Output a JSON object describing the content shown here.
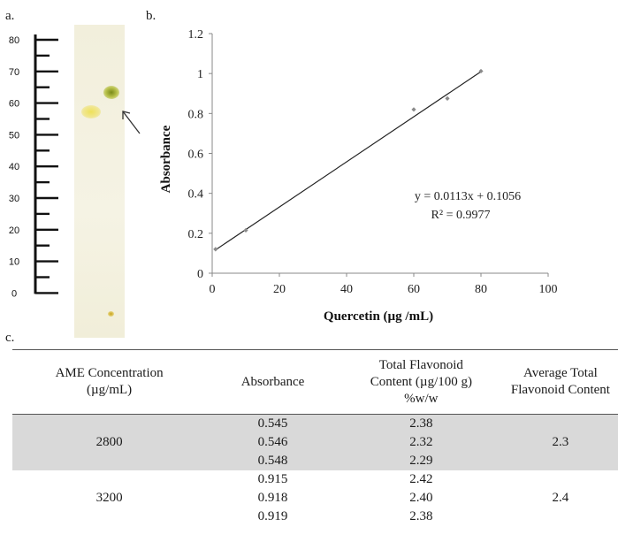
{
  "panels": {
    "a": "a.",
    "b": "b.",
    "c": "c."
  },
  "ruler": {
    "ticks": [
      "80",
      "70",
      "60",
      "50",
      "40",
      "30",
      "20",
      "10",
      "0"
    ]
  },
  "chart_data": {
    "type": "scatter",
    "xlabel": "Quercetin (µg /mL)",
    "ylabel": "Absorbance",
    "xlim": [
      0,
      100
    ],
    "ylim": [
      0,
      1.2
    ],
    "xticks": [
      "0",
      "20",
      "40",
      "60",
      "80",
      "100"
    ],
    "yticks": [
      "0",
      "0.2",
      "0.4",
      "0.6",
      "0.8",
      "1",
      "1.2"
    ],
    "points": [
      {
        "x": 1,
        "y": 0.12
      },
      {
        "x": 10,
        "y": 0.215
      },
      {
        "x": 60,
        "y": 0.82
      },
      {
        "x": 70,
        "y": 0.875
      },
      {
        "x": 80,
        "y": 1.012
      }
    ],
    "trendline": {
      "slope": 0.0113,
      "intercept": 0.1056,
      "x_from": 1,
      "x_to": 80
    },
    "annotations": {
      "equation": "y = 0.0113x + 0.1056",
      "r2": "R² = 0.9977"
    },
    "grid": false,
    "colors": {
      "marker": "#8a8a8a",
      "line": "#222222"
    }
  },
  "table": {
    "headers": [
      [
        "AME Concentration",
        "(µg/mL)"
      ],
      [
        "Absorbance"
      ],
      [
        "Total Flavonoid",
        "Content (µg/100 g)",
        "%w/w"
      ],
      [
        "Average Total",
        "Flavonoid Content"
      ]
    ],
    "groups": [
      {
        "concentration": "2800",
        "absorbance": [
          "0.545",
          "0.546",
          "0.548"
        ],
        "content": [
          "2.38",
          "2.32",
          "2.29"
        ],
        "average": "2.3",
        "shaded": true
      },
      {
        "concentration": "3200",
        "absorbance": [
          "0.915",
          "0.918",
          "0.919"
        ],
        "content": [
          "2.42",
          "2.40",
          "2.38"
        ],
        "average": "2.4",
        "shaded": false
      }
    ],
    "colors": {
      "shade": "#d9d9d9"
    }
  }
}
